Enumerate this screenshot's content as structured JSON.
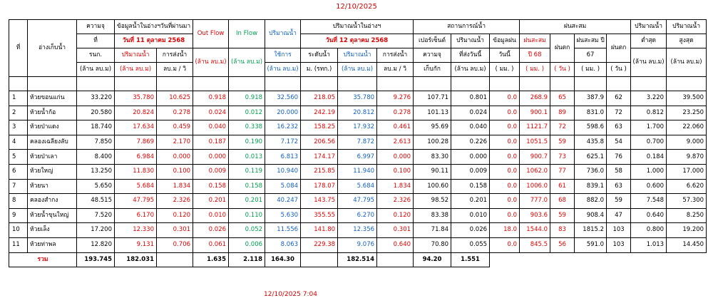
{
  "date_top": "12/10/2025",
  "timestamp_bottom": "12/10/2025 7:04",
  "headers": {
    "no": "ที่",
    "reservoir": "อ่างเก็บน้ำ",
    "capacity": [
      "ความจุ",
      "ที่",
      "รนก.",
      "(ล้าน ลบ.ม)"
    ],
    "yesterday_group": "ข้อมูลน้ำในอ่างฯวันที่ผ่านมา",
    "yesterday_date": "วันที่ 11 ตุลาคม 2568",
    "y_volume": [
      "ปริมาณน้ำ",
      "(ล้าน ลบ.ม)"
    ],
    "y_release": [
      "การส่งน้ำ",
      "ลบ.ม / วิ"
    ],
    "outflow": [
      "Out Flow",
      "(ล้าน ลบ.ม)"
    ],
    "inflow": [
      "In Flow",
      "(ล้าน ลบ.ม)"
    ],
    "usable": [
      "ปริมาณน้ำ",
      "ใช้การ",
      "(ล้าน ลบ.ม)"
    ],
    "today_group": "ปริมาณน้ำในอ่างฯ",
    "today_date": "วันที่ 12 ตุลาคม 2568",
    "t_level": [
      "ระดับน้ำ",
      "ม. (รทก.)"
    ],
    "t_volume": [
      "ปริมาณน้ำ",
      "(ล้าน ลบ.ม)"
    ],
    "t_release": [
      "การส่งน้ำ",
      "ลบ.ม / วิ"
    ],
    "status_group": "สถานการณ์น้ำ",
    "percent": [
      "เปอร์เซ็นต์",
      "ความจุ",
      "เก็บกัก"
    ],
    "released_today": [
      "ปริมาณน้ำ",
      "ที่ส่งวันนี้",
      "(ล้าน ลบ.ม)"
    ],
    "rain_today": [
      "ข้อมูลฝน",
      "วันนี้",
      "( มม. )"
    ],
    "rain_group": "ฝนสะสม",
    "rain68": [
      "ฝนสะสม",
      "ปี 68",
      "( มม. )"
    ],
    "days68": [
      "ฝนตก",
      "( วัน )"
    ],
    "rain67": [
      "ฝนสะสม ปี",
      "67",
      "( มม. )"
    ],
    "days67": [
      "ฝนตก",
      "( วัน )"
    ],
    "min": [
      "ปริมาณน้ำ",
      "ต่ำสุด",
      "(ล้าน ลบ.ม)"
    ],
    "max": [
      "ปริมาณน้ำ",
      "สูงสุด",
      "(ล้าน ลบ.ม)"
    ]
  },
  "rows": [
    {
      "no": "1",
      "name": "ห้วยขอนแก่น",
      "cap": "33.220",
      "y_vol": "35.780",
      "y_rel": "10.625",
      "out": "0.918",
      "in": "0.918",
      "usable": "32.560",
      "level": "218.05",
      "t_vol": "35.780",
      "t_rel": "9.276",
      "pct": "107.71",
      "sent": "0.801",
      "rain": "0.0",
      "r68": "268.9",
      "d68": "65",
      "r67": "387.9",
      "d67": "62",
      "min": "3.220",
      "max": "39.500"
    },
    {
      "no": "2",
      "name": "ห้วยน้ำก้อ",
      "cap": "20.580",
      "y_vol": "20.824",
      "y_rel": "0.278",
      "out": "0.024",
      "in": "0.012",
      "usable": "20.000",
      "level": "242.19",
      "t_vol": "20.812",
      "t_rel": "0.278",
      "pct": "101.13",
      "sent": "0.024",
      "rain": "0.0",
      "r68": "900.1",
      "d68": "89",
      "r67": "831.0",
      "d67": "72",
      "min": "0.812",
      "max": "23.250"
    },
    {
      "no": "3",
      "name": "ห้วยป่าแดง",
      "cap": "18.740",
      "y_vol": "17.634",
      "y_rel": "0.459",
      "out": "0.040",
      "in": "0.338",
      "usable": "16.232",
      "level": "158.25",
      "t_vol": "17.932",
      "t_rel": "0.461",
      "pct": "95.69",
      "sent": "0.040",
      "rain": "0.0",
      "r68": "1121.7",
      "d68": "72",
      "r67": "598.6",
      "d67": "63",
      "min": "1.700",
      "max": "22.060"
    },
    {
      "no": "4",
      "name": "คลองเฉลียงลับ",
      "cap": "7.850",
      "y_vol": "7.869",
      "y_rel": "2.170",
      "out": "0.187",
      "in": "0.190",
      "usable": "7.172",
      "level": "206.56",
      "t_vol": "7.872",
      "t_rel": "2.613",
      "pct": "100.28",
      "sent": "0.226",
      "rain": "0.0",
      "r68": "1051.5",
      "d68": "59",
      "r67": "435.8",
      "d67": "54",
      "min": "0.700",
      "max": "9.000"
    },
    {
      "no": "5",
      "name": "ห้วยป่าเลา",
      "cap": "8.400",
      "y_vol": "6.984",
      "y_rel": "0.000",
      "out": "0.000",
      "in": "0.013",
      "usable": "6.813",
      "level": "174.17",
      "t_vol": "6.997",
      "t_rel": "0.000",
      "pct": "83.30",
      "sent": "0.000",
      "rain": "0.0",
      "r68": "900.7",
      "d68": "73",
      "r67": "625.1",
      "d67": "76",
      "min": "0.184",
      "max": "9.870"
    },
    {
      "no": "6",
      "name": "ห้วยใหญ่",
      "cap": "13.250",
      "y_vol": "11.830",
      "y_rel": "0.100",
      "out": "0.009",
      "in": "0.119",
      "usable": "10.940",
      "level": "215.85",
      "t_vol": "11.940",
      "t_rel": "0.100",
      "pct": "90.11",
      "sent": "0.009",
      "rain": "0.0",
      "r68": "1062.0",
      "d68": "77",
      "r67": "736.0",
      "d67": "58",
      "min": "1.000",
      "max": "17.000"
    },
    {
      "no": "7",
      "name": "ห้วยนา",
      "cap": "5.650",
      "y_vol": "5.684",
      "y_rel": "1.834",
      "out": "0.158",
      "in": "0.158",
      "usable": "5.084",
      "level": "178.07",
      "t_vol": "5.684",
      "t_rel": "1.834",
      "pct": "100.60",
      "sent": "0.158",
      "rain": "0.0",
      "r68": "1006.0",
      "d68": "61",
      "r67": "839.1",
      "d67": "63",
      "min": "0.600",
      "max": "6.620"
    },
    {
      "no": "8",
      "name": "คลองสำกง",
      "cap": "48.515",
      "y_vol": "47.795",
      "y_rel": "2.326",
      "out": "0.201",
      "in": "0.201",
      "usable": "40.247",
      "level": "143.75",
      "t_vol": "47.795",
      "t_rel": "2.326",
      "pct": "98.52",
      "sent": "0.201",
      "rain": "0.0",
      "r68": "777.0",
      "d68": "68",
      "r67": "882.0",
      "d67": "59",
      "min": "7.548",
      "max": "57.300"
    },
    {
      "no": "9",
      "name": "ห้วยน้ำขุนใหญ่",
      "cap": "7.520",
      "y_vol": "6.170",
      "y_rel": "0.120",
      "out": "0.010",
      "in": "0.110",
      "usable": "5.630",
      "level": "355.55",
      "t_vol": "6.270",
      "t_rel": "0.120",
      "pct": "83.38",
      "sent": "0.010",
      "rain": "0.0",
      "r68": "903.6",
      "d68": "59",
      "r67": "908.4",
      "d67": "47",
      "min": "0.640",
      "max": "8.250"
    },
    {
      "no": "10",
      "name": "ห้วยเล็ง",
      "cap": "17.200",
      "y_vol": "12.330",
      "y_rel": "0.301",
      "out": "0.026",
      "in": "0.052",
      "usable": "11.556",
      "level": "141.80",
      "t_vol": "12.356",
      "t_rel": "0.301",
      "pct": "71.84",
      "sent": "0.026",
      "rain": "18.0",
      "r68": "1544.0",
      "d68": "83",
      "r67": "1815.2",
      "d67": "103",
      "min": "0.800",
      "max": "19.200"
    },
    {
      "no": "11",
      "name": "ห้วยท่าพล",
      "cap": "12.820",
      "y_vol": "9.131",
      "y_rel": "0.706",
      "out": "0.061",
      "in": "0.006",
      "usable": "8.063",
      "level": "229.38",
      "t_vol": "9.076",
      "t_rel": "0.640",
      "pct": "70.80",
      "sent": "0.055",
      "rain": "0.0",
      "r68": "845.5",
      "d68": "56",
      "r67": "591.0",
      "d67": "103",
      "min": "1.013",
      "max": "14.450"
    }
  ],
  "total": {
    "label": "รวม",
    "cap": "193.745",
    "y_vol": "182.031",
    "out": "1.635",
    "in": "2.118",
    "usable": "164.30",
    "t_vol": "182.514",
    "pct": "94.20",
    "sent": "1.551"
  }
}
